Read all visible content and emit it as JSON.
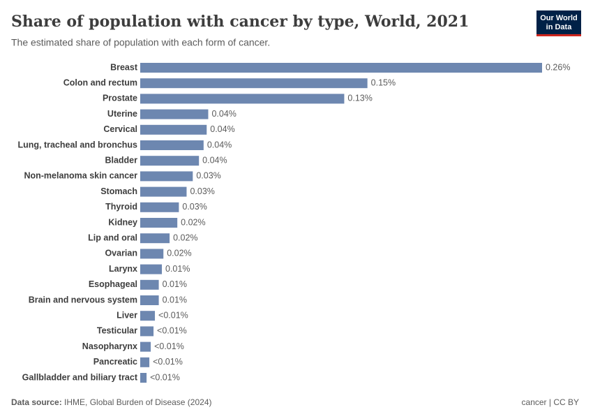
{
  "chart_data": {
    "type": "bar",
    "orientation": "horizontal",
    "title": "Share of population with cancer by type, World, 2021",
    "subtitle": "The estimated share of population with each form of cancer.",
    "logo": [
      "Our World",
      "in Data"
    ],
    "source_label": "Data source:",
    "source": "IHME, Global Burden of Disease (2024)",
    "note": "cancer | CC BY",
    "color": "#6d87b0",
    "categories": [
      "Breast",
      "Colon and rectum",
      "Prostate",
      "Uterine",
      "Cervical",
      "Lung, tracheal and bronchus",
      "Bladder",
      "Non-melanoma skin cancer",
      "Stomach",
      "Thyroid",
      "Kidney",
      "Lip and oral",
      "Ovarian",
      "Larynx",
      "Esophageal",
      "Brain and nervous system",
      "Liver",
      "Testicular",
      "Nasopharynx",
      "Pancreatic",
      "Gallbladder and biliary tract"
    ],
    "values": [
      0.26,
      0.147,
      0.132,
      0.044,
      0.043,
      0.041,
      0.038,
      0.034,
      0.03,
      0.025,
      0.024,
      0.019,
      0.015,
      0.014,
      0.012,
      0.012,
      0.0095,
      0.0086,
      0.0068,
      0.0059,
      0.0041
    ],
    "value_labels": [
      "0.26%",
      "0.15%",
      "0.13%",
      "0.04%",
      "0.04%",
      "0.04%",
      "0.04%",
      "0.03%",
      "0.03%",
      "0.03%",
      "0.02%",
      "0.02%",
      "0.02%",
      "0.01%",
      "0.01%",
      "0.01%",
      "<0.01%",
      "<0.01%",
      "<0.01%",
      "<0.01%",
      "<0.01%"
    ]
  }
}
